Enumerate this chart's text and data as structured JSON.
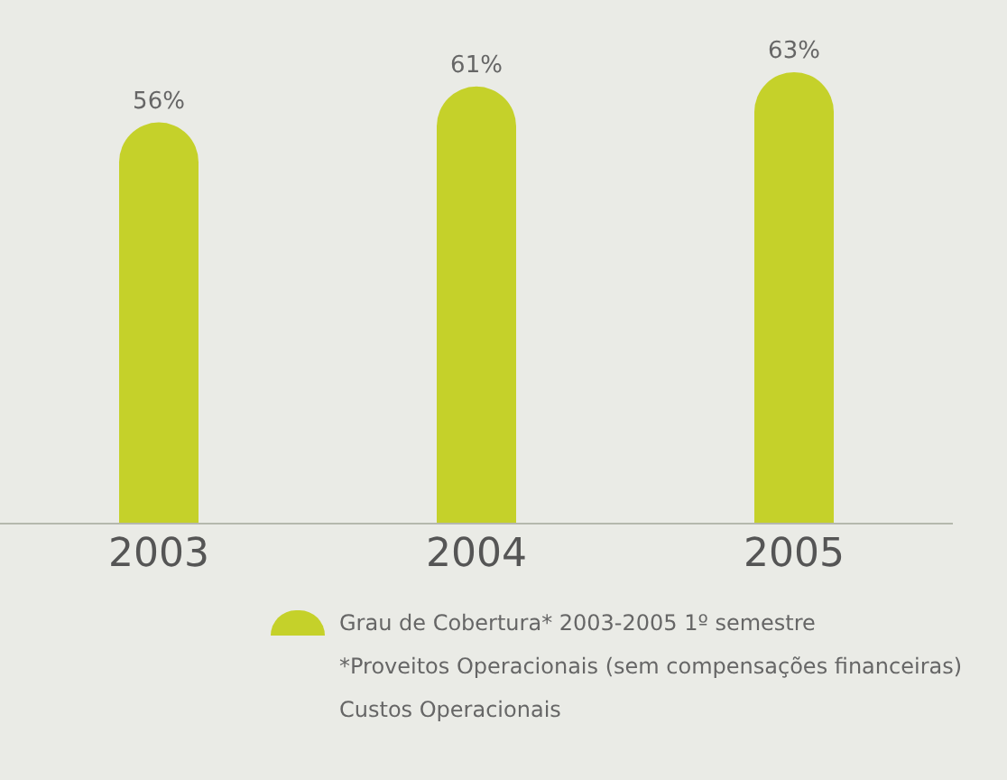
{
  "chart_data": {
    "type": "bar",
    "categories": [
      "2003",
      "2004",
      "2005"
    ],
    "series": [
      {
        "name": "Grau de Cobertura* 2003-2005 1º semestre",
        "color": "#c5d12a",
        "values": [
          56,
          61,
          63
        ],
        "value_labels": [
          "56%",
          "61%",
          "63%"
        ]
      }
    ],
    "legend": "bottom",
    "annotations": [
      "*Proveitos Operacionais (sem compensações financeiras)",
      "Custos Operacionais"
    ]
  }
}
